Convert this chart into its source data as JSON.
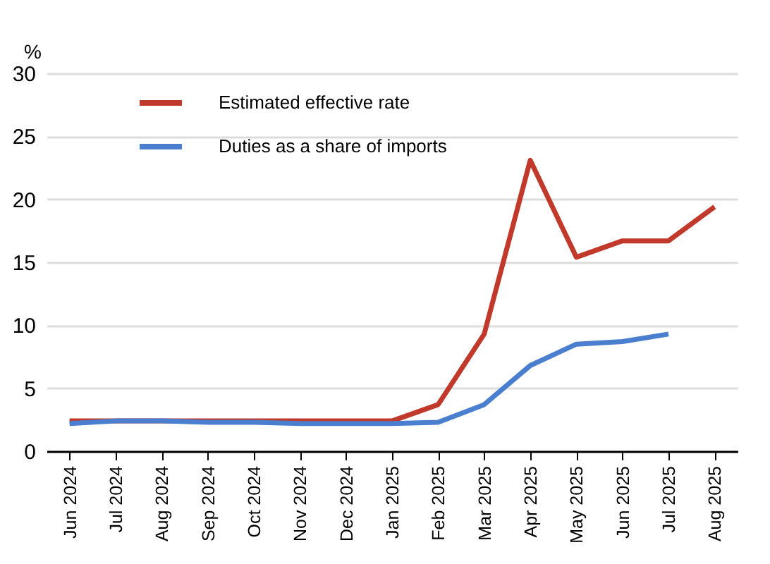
{
  "chart_data": {
    "type": "line",
    "ylabel": "%",
    "categories": [
      "Jun 2024",
      "Jul 2024",
      "Aug 2024",
      "Sep 2024",
      "Oct 2024",
      "Nov 2024",
      "Dec 2024",
      "Jan 2025",
      "Feb 2025",
      "Mar 2025",
      "Apr 2025",
      "May 2025",
      "Jun 2025",
      "Jul 2025",
      "Aug 2025"
    ],
    "series": [
      {
        "name": "Estimated effective rate",
        "color": "#c0392b",
        "values": [
          2.4,
          2.4,
          2.4,
          2.4,
          2.4,
          2.4,
          2.4,
          2.4,
          3.7,
          9.3,
          23.1,
          15.4,
          16.7,
          16.7,
          19.4
        ]
      },
      {
        "name": "Duties as a share of imports",
        "color": "#4a7fd0",
        "values": [
          2.2,
          2.4,
          2.4,
          2.3,
          2.3,
          2.2,
          2.2,
          2.2,
          2.3,
          3.7,
          6.8,
          8.5,
          8.7,
          9.3,
          null
        ]
      }
    ],
    "ylim": [
      0,
      30
    ],
    "yticks": [
      0,
      5,
      10,
      15,
      20,
      25,
      30
    ],
    "grid": "y",
    "legend": "top left",
    "line_style": "solid",
    "marker": "none"
  }
}
